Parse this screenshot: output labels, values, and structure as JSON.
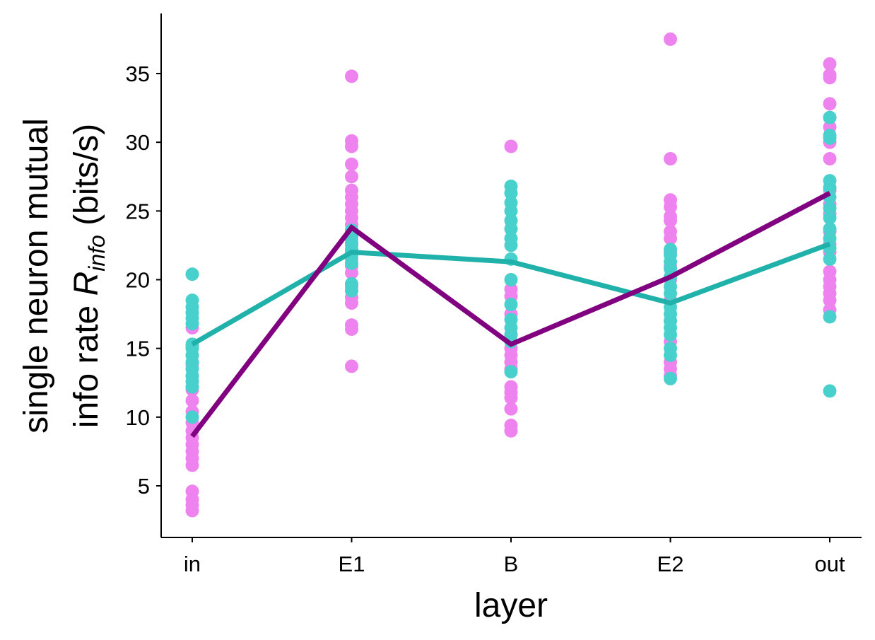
{
  "chart_data": {
    "type": "scatter",
    "categories": [
      "in",
      "E1",
      "B",
      "E2",
      "out"
    ],
    "xlabel": "layer",
    "ylabel": {
      "line1": "single neuron mutual",
      "line2_prefix": "info rate ",
      "symbol": "R",
      "subscript": "info",
      "line2_suffix": " (bits/s)"
    },
    "ylim": [
      1.3,
      39.2
    ],
    "yticks": [
      5,
      10,
      15,
      20,
      25,
      30,
      35
    ],
    "grid": false,
    "legend": "none",
    "series": [
      {
        "color": "#ee82ee",
        "mean_line_color": "#800080",
        "points": [
          [
            3.2,
            3.6,
            4.0,
            4.6,
            6.5,
            7.0,
            7.5,
            8.0,
            8.5,
            9.0,
            9.6,
            10.4,
            11.2,
            12.0,
            13.0,
            13.8,
            14.5,
            15.2,
            16.5
          ],
          [
            13.7,
            16.4,
            16.7,
            18.3,
            18.7,
            19.5,
            20.5,
            21.0,
            21.5,
            22.0,
            22.5,
            23.0,
            23.5,
            24.0,
            24.5,
            25.0,
            25.5,
            26.0,
            26.5,
            27.5,
            28.4,
            29.7,
            30.1,
            34.8
          ],
          [
            9.0,
            9.4,
            10.6,
            11.4,
            11.8,
            12.2,
            13.5,
            14.0,
            14.5,
            15.0,
            16.0,
            17.5,
            18.8,
            19.3,
            29.7
          ],
          [
            13.0,
            13.5,
            14.0,
            15.5,
            17.0,
            18.5,
            20.0,
            21.0,
            22.0,
            23.0,
            23.5,
            24.3,
            24.6,
            25.3,
            25.8,
            28.8,
            37.5
          ],
          [
            17.8,
            18.5,
            19.0,
            19.5,
            20.0,
            20.6,
            22.0,
            22.6,
            23.5,
            24.8,
            25.5,
            26.5,
            28.8,
            30.0,
            31.1,
            31.8,
            32.8,
            34.7,
            34.9,
            35.7
          ]
        ],
        "mean": [
          8.6,
          23.8,
          15.3,
          20.2,
          26.3
        ]
      },
      {
        "color": "#48d1cc",
        "mean_line_color": "#20b2aa",
        "points": [
          [
            10.0,
            12.2,
            12.6,
            13.0,
            13.5,
            14.0,
            14.5,
            15.0,
            15.3,
            16.8,
            17.2,
            17.6,
            18.0,
            18.5,
            20.4
          ],
          [
            19.2,
            19.7,
            21.2,
            21.8,
            22.2,
            22.7,
            23.2,
            23.6
          ],
          [
            13.3,
            15.5,
            16.0,
            16.5,
            17.1,
            18.2,
            20.0,
            21.5,
            22.5,
            23.0,
            23.7,
            24.3,
            25.0,
            25.6,
            26.3,
            26.8
          ],
          [
            12.8,
            14.5,
            15.0,
            16.0,
            16.5,
            17.0,
            17.5,
            18.0,
            19.0,
            19.5,
            20.2,
            20.8,
            21.3,
            21.8,
            22.2
          ],
          [
            11.9,
            17.3,
            21.5,
            22.3,
            23.0,
            23.7,
            24.5,
            25.2,
            26.0,
            26.7,
            27.2,
            30.3,
            30.5,
            31.8
          ]
        ],
        "mean": [
          15.3,
          22.0,
          21.3,
          18.3,
          22.6
        ]
      }
    ]
  }
}
